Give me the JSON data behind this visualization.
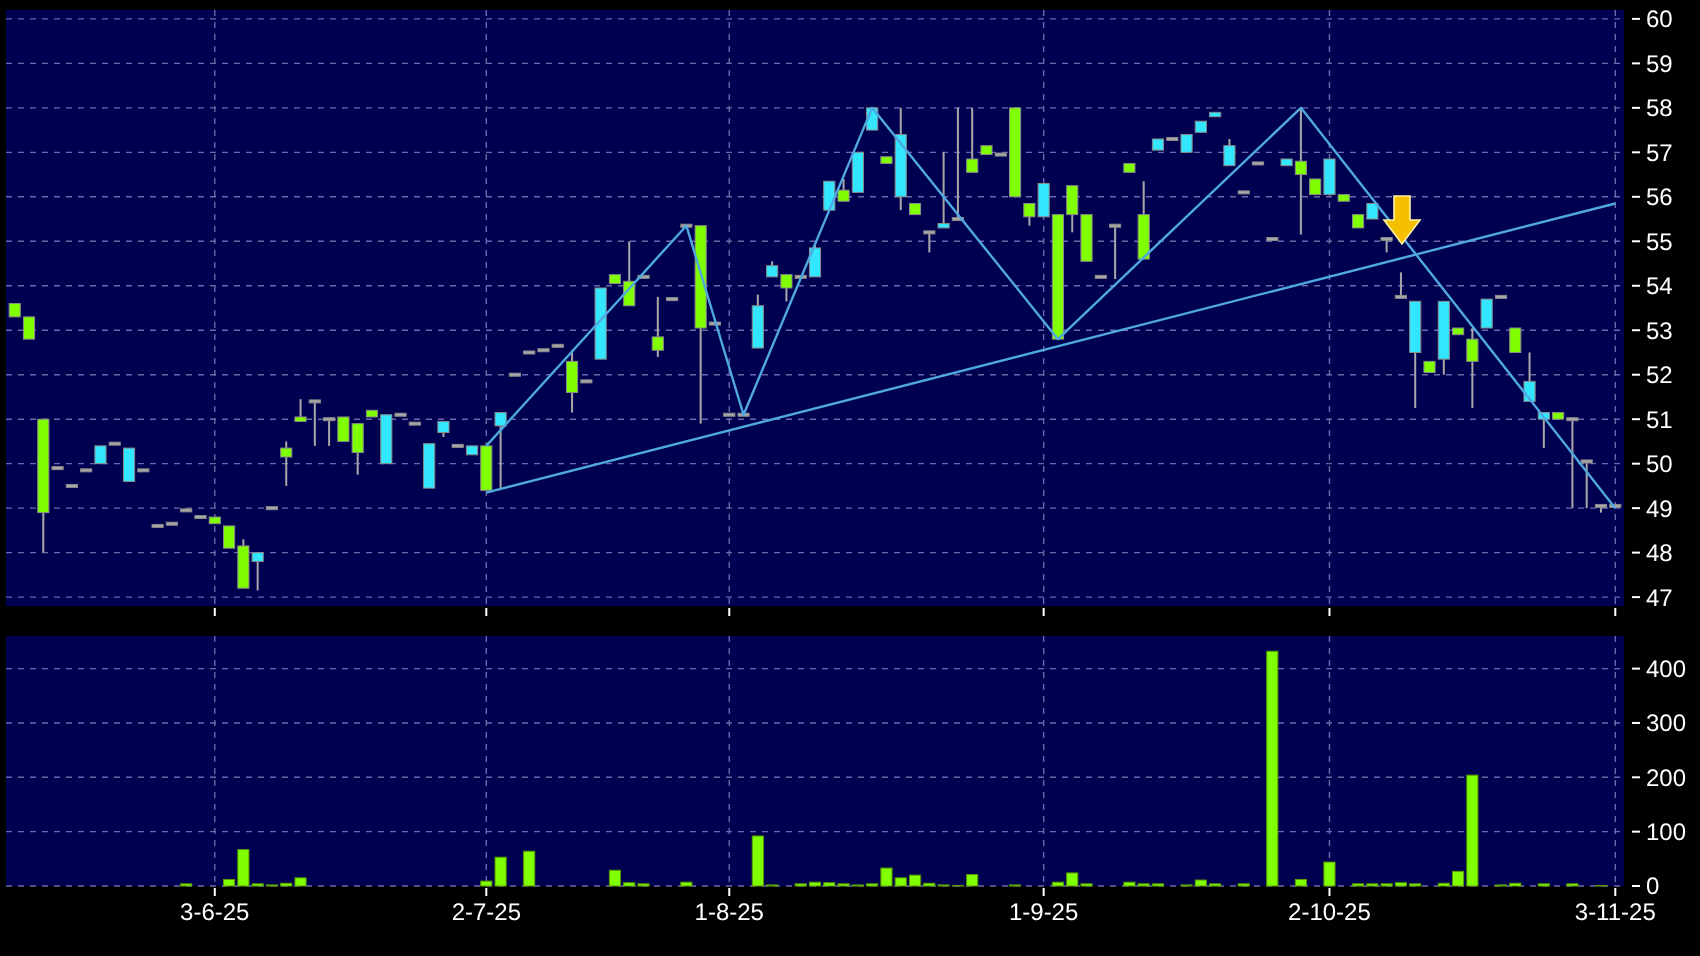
{
  "chart_data": [
    {
      "type": "candlestick",
      "categories": [
        null,
        null,
        null,
        null,
        null,
        null,
        null,
        null,
        null,
        null,
        null,
        null,
        null,
        null,
        null,
        null,
        null,
        null,
        null,
        null,
        null,
        null,
        null,
        null,
        null,
        null,
        null,
        null,
        null,
        null,
        null,
        null,
        null,
        null,
        null,
        null,
        null,
        null,
        null,
        null,
        null,
        null,
        null,
        null,
        null,
        null,
        null,
        null,
        null,
        null,
        null,
        null,
        null,
        null,
        null,
        null,
        null,
        null,
        null,
        null,
        null,
        null,
        null,
        null,
        null,
        null,
        null,
        null,
        null,
        null,
        null,
        null,
        null,
        null,
        null,
        null,
        null,
        null,
        null,
        null,
        null,
        null,
        null,
        null,
        null,
        null,
        null,
        null,
        null,
        null,
        null,
        null,
        null,
        null,
        null,
        null,
        null,
        null,
        null,
        null,
        null,
        null,
        null,
        null,
        null,
        null,
        null,
        null,
        null,
        null,
        null,
        null,
        null
      ],
      "ohlc": [
        [
          53.6,
          53.6,
          53.3,
          53.3
        ],
        [
          53.3,
          53.3,
          52.8,
          52.8
        ],
        [
          51.0,
          51.0,
          48.0,
          48.9
        ],
        [
          49.9,
          49.9,
          49.9,
          49.9
        ],
        [
          49.5,
          49.5,
          49.5,
          49.5
        ],
        [
          49.85,
          49.85,
          49.85,
          49.85
        ],
        [
          50.0,
          50.4,
          50.0,
          50.4
        ],
        [
          50.45,
          50.45,
          50.45,
          50.45
        ],
        [
          49.6,
          50.35,
          49.6,
          50.35
        ],
        [
          49.85,
          49.85,
          49.85,
          49.85
        ],
        [
          48.6,
          48.6,
          48.6,
          48.6
        ],
        [
          48.65,
          48.65,
          48.65,
          48.65
        ],
        [
          48.95,
          48.95,
          48.95,
          48.95
        ],
        [
          48.8,
          48.8,
          48.8,
          48.8
        ],
        [
          48.8,
          48.8,
          48.65,
          48.65
        ],
        [
          48.6,
          48.6,
          48.1,
          48.1
        ],
        [
          48.15,
          48.3,
          47.2,
          47.2
        ],
        [
          47.8,
          48.0,
          47.15,
          48.0
        ],
        [
          49.0,
          49.0,
          49.0,
          49.0
        ],
        [
          50.35,
          50.5,
          49.5,
          50.15
        ],
        [
          51.05,
          51.45,
          50.95,
          50.95
        ],
        [
          51.4,
          51.4,
          50.4,
          51.4
        ],
        [
          51.0,
          51.0,
          50.4,
          51.0
        ],
        [
          51.05,
          51.05,
          50.5,
          50.5
        ],
        [
          50.9,
          50.9,
          49.75,
          50.25
        ],
        [
          51.2,
          51.2,
          51.05,
          51.05
        ],
        [
          50.0,
          51.1,
          50.0,
          51.1
        ],
        [
          51.1,
          51.1,
          51.1,
          51.1
        ],
        [
          50.9,
          50.9,
          50.9,
          50.9
        ],
        [
          49.45,
          50.45,
          49.45,
          50.45
        ],
        [
          50.7,
          50.95,
          50.6,
          50.95
        ],
        [
          50.4,
          50.4,
          50.4,
          50.4
        ],
        [
          50.2,
          50.4,
          50.2,
          50.4
        ],
        [
          50.4,
          50.4,
          49.4,
          49.4
        ],
        [
          50.85,
          51.15,
          49.45,
          51.15
        ],
        [
          52.0,
          52.0,
          52.0,
          52.0
        ],
        [
          52.5,
          52.5,
          52.5,
          52.5
        ],
        [
          52.55,
          52.55,
          52.55,
          52.55
        ],
        [
          52.65,
          52.65,
          52.65,
          52.65
        ],
        [
          52.3,
          52.55,
          51.15,
          51.6
        ],
        [
          51.85,
          51.85,
          51.85,
          51.85
        ],
        [
          52.35,
          53.95,
          52.35,
          53.95
        ],
        [
          54.25,
          54.25,
          54.05,
          54.05
        ],
        [
          54.1,
          55.0,
          53.55,
          53.55
        ],
        [
          54.2,
          54.2,
          54.2,
          54.2
        ],
        [
          52.85,
          53.75,
          52.4,
          52.55
        ],
        [
          53.7,
          53.7,
          53.7,
          53.7
        ],
        [
          55.35,
          55.35,
          55.35,
          55.35
        ],
        [
          55.35,
          55.35,
          50.9,
          53.05
        ],
        [
          53.15,
          53.15,
          53.15,
          53.15
        ],
        [
          51.1,
          51.1,
          51.1,
          51.1
        ],
        [
          51.1,
          51.1,
          51.1,
          51.1
        ],
        [
          52.6,
          53.8,
          52.6,
          53.55
        ],
        [
          54.2,
          54.55,
          54.2,
          54.45
        ],
        [
          54.25,
          54.25,
          53.65,
          53.95
        ],
        [
          54.2,
          54.2,
          54.2,
          54.2
        ],
        [
          54.2,
          54.95,
          54.2,
          54.85
        ],
        [
          55.7,
          56.35,
          55.7,
          56.35
        ],
        [
          56.15,
          56.4,
          55.9,
          55.9
        ],
        [
          56.1,
          57.0,
          56.1,
          57.0
        ],
        [
          57.5,
          58.0,
          57.5,
          58.0
        ],
        [
          56.9,
          56.9,
          56.75,
          56.75
        ],
        [
          56.0,
          58.0,
          55.7,
          57.4
        ],
        [
          55.85,
          55.85,
          55.6,
          55.6
        ],
        [
          55.2,
          55.2,
          54.75,
          55.2
        ],
        [
          55.3,
          57.0,
          55.3,
          55.4
        ],
        [
          55.5,
          58.0,
          55.5,
          55.5
        ],
        [
          56.85,
          58.0,
          56.55,
          56.55
        ],
        [
          57.15,
          57.15,
          56.95,
          56.95
        ],
        [
          56.95,
          56.95,
          56.95,
          56.95
        ],
        [
          58.0,
          58.0,
          56.0,
          56.0
        ],
        [
          55.85,
          55.85,
          55.35,
          55.55
        ],
        [
          55.55,
          56.3,
          55.55,
          56.3
        ],
        [
          55.6,
          55.6,
          52.8,
          52.8
        ],
        [
          56.25,
          56.25,
          55.2,
          55.6
        ],
        [
          55.6,
          55.6,
          54.55,
          54.55
        ],
        [
          54.2,
          54.2,
          54.2,
          54.2
        ],
        [
          55.35,
          55.35,
          54.15,
          55.35
        ],
        [
          56.75,
          56.75,
          56.55,
          56.55
        ],
        [
          55.6,
          56.35,
          54.6,
          54.6
        ],
        [
          57.05,
          57.3,
          57.05,
          57.3
        ],
        [
          57.3,
          57.3,
          57.3,
          57.3
        ],
        [
          57.0,
          57.4,
          57.0,
          57.4
        ],
        [
          57.45,
          57.7,
          57.45,
          57.7
        ],
        [
          57.8,
          57.9,
          57.8,
          57.9
        ],
        [
          56.7,
          57.3,
          56.7,
          57.15
        ],
        [
          56.1,
          56.1,
          56.1,
          56.1
        ],
        [
          56.75,
          56.75,
          56.75,
          56.75
        ],
        [
          55.05,
          55.05,
          55.05,
          55.05
        ],
        [
          56.7,
          56.85,
          56.7,
          56.85
        ],
        [
          56.8,
          58.0,
          55.15,
          56.5
        ],
        [
          56.4,
          56.4,
          56.05,
          56.05
        ],
        [
          56.05,
          56.85,
          56.05,
          56.85
        ],
        [
          56.05,
          56.05,
          55.9,
          55.9
        ],
        [
          55.6,
          55.6,
          55.3,
          55.3
        ],
        [
          55.5,
          55.85,
          55.5,
          55.85
        ],
        [
          55.05,
          55.05,
          54.75,
          55.05
        ],
        [
          53.75,
          54.3,
          53.75,
          53.75
        ],
        [
          52.5,
          53.65,
          51.25,
          53.65
        ],
        [
          52.3,
          52.3,
          52.05,
          52.05
        ],
        [
          52.35,
          53.65,
          52.0,
          53.65
        ],
        [
          53.05,
          53.05,
          52.9,
          52.9
        ],
        [
          52.8,
          53.05,
          51.25,
          52.3
        ],
        [
          53.05,
          53.7,
          53.05,
          53.7
        ],
        [
          53.75,
          53.75,
          53.75,
          53.75
        ],
        [
          53.05,
          53.05,
          52.5,
          52.5
        ],
        [
          51.4,
          52.5,
          51.4,
          51.85
        ],
        [
          51.0,
          51.15,
          50.35,
          51.15
        ],
        [
          51.15,
          51.15,
          51.0,
          51.0
        ],
        [
          51.0,
          51.0,
          49.0,
          51.0
        ],
        [
          50.05,
          50.05,
          49.0,
          50.05
        ],
        [
          49.05,
          49.05,
          48.9,
          49.05
        ],
        [
          49.05,
          49.05,
          49.05,
          49.05
        ]
      ],
      "colors": [
        "#80ff00",
        "#80ff00",
        "#80ff00",
        "#a8a8a8",
        "#a8a8a8",
        "#a8a8a8",
        "#33e6ff",
        "#a8a8a8",
        "#33e6ff",
        "#a8a8a8",
        "#a8a8a8",
        "#a8a8a8",
        "#a8a8a8",
        "#a8a8a8",
        "#80ff00",
        "#80ff00",
        "#80ff00",
        "#33e6ff",
        "#a8a8a8",
        "#80ff00",
        "#80ff00",
        "#a8a8a8",
        "#a8a8a8",
        "#80ff00",
        "#80ff00",
        "#80ff00",
        "#33e6ff",
        "#a8a8a8",
        "#a8a8a8",
        "#33e6ff",
        "#33e6ff",
        "#a8a8a8",
        "#33e6ff",
        "#80ff00",
        "#33e6ff",
        "#a8a8a8",
        "#a8a8a8",
        "#a8a8a8",
        "#a8a8a8",
        "#80ff00",
        "#a8a8a8",
        "#33e6ff",
        "#80ff00",
        "#80ff00",
        "#a8a8a8",
        "#80ff00",
        "#a8a8a8",
        "#a8a8a8",
        "#80ff00",
        "#a8a8a8",
        "#a8a8a8",
        "#a8a8a8",
        "#33e6ff",
        "#33e6ff",
        "#80ff00",
        "#a8a8a8",
        "#33e6ff",
        "#33e6ff",
        "#80ff00",
        "#33e6ff",
        "#33e6ff",
        "#80ff00",
        "#33e6ff",
        "#80ff00",
        "#a8a8a8",
        "#33e6ff",
        "#a8a8a8",
        "#80ff00",
        "#80ff00",
        "#a8a8a8",
        "#80ff00",
        "#80ff00",
        "#33e6ff",
        "#80ff00",
        "#80ff00",
        "#80ff00",
        "#a8a8a8",
        "#a8a8a8",
        "#80ff00",
        "#80ff00",
        "#33e6ff",
        "#a8a8a8",
        "#33e6ff",
        "#33e6ff",
        "#33e6ff",
        "#33e6ff",
        "#a8a8a8",
        "#a8a8a8",
        "#a8a8a8",
        "#33e6ff",
        "#80ff00",
        "#80ff00",
        "#33e6ff",
        "#80ff00",
        "#80ff00",
        "#33e6ff",
        "#a8a8a8",
        "#a8a8a8",
        "#33e6ff",
        "#80ff00",
        "#33e6ff",
        "#80ff00",
        "#80ff00",
        "#33e6ff",
        "#a8a8a8",
        "#80ff00",
        "#33e6ff",
        "#33e6ff",
        "#80ff00",
        "#a8a8a8",
        "#a8a8a8",
        "#a8a8a8",
        "#a8a8a8"
      ],
      "series": [
        {
          "type": "line",
          "color": "#4fa8e0",
          "values": [
            null,
            null,
            null,
            null,
            null,
            null,
            null,
            null,
            null,
            null,
            null,
            null,
            null,
            null,
            null,
            null,
            null,
            null,
            null,
            null,
            null,
            null,
            null,
            null,
            null,
            null,
            null,
            null,
            null,
            null,
            null,
            null,
            null,
            50.4,
            null,
            null,
            null,
            null,
            null,
            null,
            null,
            null,
            null,
            null,
            null,
            null,
            null,
            55.35,
            null,
            null,
            null,
            51.1,
            null,
            null,
            null,
            null,
            null,
            null,
            null,
            null,
            58.0,
            null,
            null,
            null,
            null,
            null,
            null,
            null,
            null,
            null,
            null,
            null,
            null,
            52.8,
            null,
            null,
            null,
            null,
            null,
            null,
            null,
            null,
            null,
            null,
            null,
            null,
            null,
            null,
            null,
            null,
            58.0,
            null,
            null,
            null,
            null,
            null,
            null,
            null,
            null,
            null,
            null,
            null,
            null,
            null,
            null,
            null,
            null,
            null,
            null,
            null,
            null,
            null,
            49.0
          ]
        },
        {
          "type": "line",
          "color": "#4fa8e0",
          "values": [
            null,
            null,
            null,
            null,
            null,
            null,
            null,
            null,
            null,
            null,
            null,
            null,
            null,
            null,
            null,
            null,
            null,
            null,
            null,
            null,
            null,
            null,
            null,
            null,
            null,
            null,
            null,
            null,
            null,
            null,
            null,
            null,
            null,
            49.35,
            null,
            null,
            null,
            null,
            null,
            null,
            null,
            null,
            null,
            null,
            null,
            null,
            null,
            null,
            null,
            null,
            null,
            null,
            null,
            null,
            null,
            null,
            null,
            null,
            null,
            null,
            null,
            null,
            null,
            null,
            null,
            null,
            null,
            null,
            null,
            null,
            null,
            null,
            null,
            null,
            null,
            null,
            null,
            null,
            null,
            null,
            null,
            null,
            null,
            null,
            null,
            null,
            null,
            null,
            null,
            null,
            null,
            null,
            null,
            null,
            null,
            null,
            null,
            null,
            null,
            null,
            null,
            null,
            null,
            null,
            null,
            null,
            null,
            null,
            null,
            null,
            null,
            null,
            55.85
          ]
        }
      ],
      "ylim": [
        46.8,
        60.2
      ],
      "yticks": [
        47,
        48,
        49,
        50,
        51,
        52,
        53,
        54,
        55,
        56,
        57,
        58,
        59,
        60
      ],
      "grid": true,
      "tick_labels": "y"
    },
    {
      "type": "bar",
      "categories": [
        null,
        null,
        null,
        null,
        null,
        null,
        null,
        null,
        null,
        null,
        null,
        null,
        null,
        null,
        "3-6-25",
        null,
        null,
        null,
        null,
        null,
        null,
        null,
        null,
        null,
        null,
        null,
        null,
        null,
        null,
        null,
        null,
        null,
        null,
        "2-7-25",
        null,
        null,
        null,
        null,
        null,
        null,
        null,
        null,
        null,
        null,
        null,
        null,
        null,
        null,
        null,
        null,
        "1-8-25",
        null,
        null,
        null,
        null,
        null,
        null,
        null,
        null,
        null,
        null,
        null,
        null,
        null,
        null,
        null,
        null,
        null,
        null,
        null,
        null,
        null,
        "1-9-25",
        null,
        null,
        null,
        null,
        null,
        null,
        null,
        null,
        null,
        null,
        null,
        null,
        null,
        null,
        null,
        null,
        null,
        null,
        null,
        "2-10-25",
        null,
        null,
        null,
        null,
        null,
        null,
        null,
        null,
        null,
        null,
        null,
        null,
        null,
        null,
        null,
        null,
        null,
        null,
        null,
        "3-11-25"
      ],
      "values": [
        null,
        null,
        null,
        null,
        null,
        null,
        null,
        null,
        null,
        null,
        null,
        null,
        4,
        null,
        null,
        12,
        67,
        4,
        2,
        5,
        15,
        null,
        null,
        null,
        null,
        null,
        null,
        null,
        null,
        null,
        null,
        null,
        null,
        9,
        53,
        null,
        64,
        null,
        null,
        null,
        null,
        null,
        29,
        6,
        4,
        null,
        null,
        7,
        null,
        null,
        null,
        null,
        92,
        2,
        null,
        4,
        7,
        6,
        4,
        2,
        4,
        33,
        15,
        20,
        5,
        2,
        1,
        21,
        null,
        null,
        2,
        null,
        null,
        7,
        24,
        4,
        null,
        null,
        7,
        4,
        4,
        null,
        2,
        11,
        4,
        null,
        4,
        null,
        432,
        null,
        12,
        null,
        44,
        null,
        4,
        4,
        4,
        6,
        4,
        null,
        5,
        27,
        204,
        null,
        2,
        5,
        null,
        4,
        null,
        4,
        null,
        1,
        null
      ],
      "color": "#80ff00",
      "ylim": [
        0,
        460
      ],
      "yticks": [
        0,
        100,
        200,
        300,
        400
      ],
      "grid": true
    }
  ]
}
